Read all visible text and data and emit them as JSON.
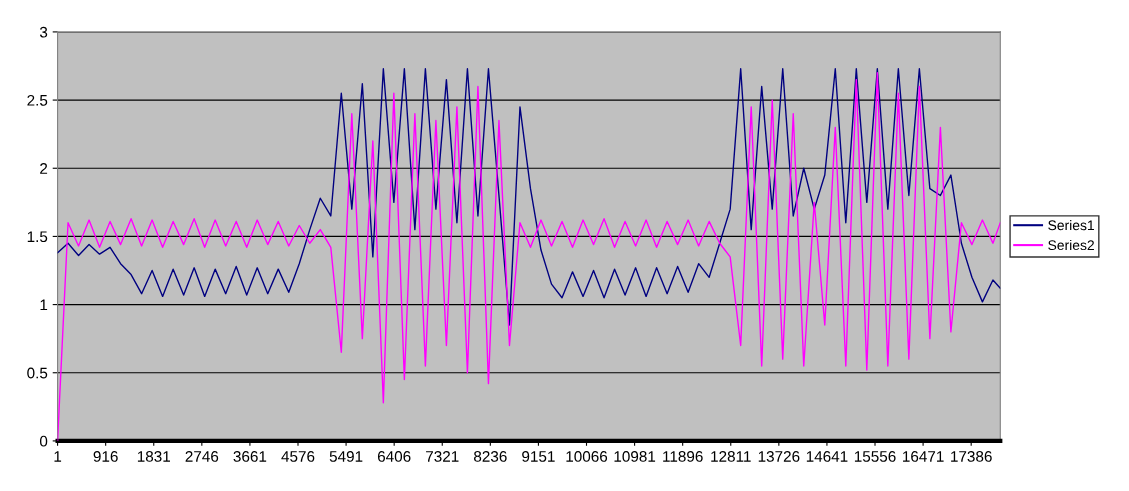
{
  "chart_data": {
    "type": "line",
    "x": [
      1,
      200,
      400,
      600,
      800,
      1000,
      1200,
      1400,
      1600,
      1800,
      2000,
      2200,
      2400,
      2600,
      2800,
      3000,
      3200,
      3400,
      3600,
      3800,
      4000,
      4200,
      4400,
      4600,
      4800,
      5000,
      5200,
      5400,
      5600,
      5800,
      6000,
      6200,
      6400,
      6600,
      6800,
      7000,
      7200,
      7400,
      7600,
      7800,
      8000,
      8200,
      8400,
      8600,
      8800,
      9000,
      9200,
      9400,
      9600,
      9800,
      10000,
      10200,
      10400,
      10600,
      10800,
      11000,
      11200,
      11400,
      11600,
      11800,
      12000,
      12200,
      12400,
      12600,
      12800,
      13000,
      13200,
      13400,
      13600,
      13800,
      14000,
      14200,
      14400,
      14600,
      14800,
      15000,
      15200,
      15400,
      15600,
      15800,
      16000,
      16200,
      16400,
      16600,
      16800,
      17000,
      17200,
      17400,
      17600,
      17800,
      17940
    ],
    "series": [
      {
        "name": "Series1",
        "color": "#000080",
        "values": [
          1.38,
          1.45,
          1.36,
          1.44,
          1.37,
          1.42,
          1.3,
          1.22,
          1.08,
          1.25,
          1.06,
          1.26,
          1.07,
          1.27,
          1.06,
          1.26,
          1.08,
          1.28,
          1.07,
          1.27,
          1.08,
          1.26,
          1.09,
          1.3,
          1.55,
          1.78,
          1.65,
          2.55,
          1.7,
          2.62,
          1.35,
          2.73,
          1.75,
          2.73,
          1.55,
          2.73,
          1.7,
          2.65,
          1.6,
          2.73,
          1.65,
          2.73,
          1.8,
          0.85,
          2.45,
          1.85,
          1.4,
          1.15,
          1.05,
          1.24,
          1.06,
          1.25,
          1.05,
          1.26,
          1.07,
          1.27,
          1.06,
          1.27,
          1.08,
          1.28,
          1.09,
          1.3,
          1.2,
          1.45,
          1.7,
          2.73,
          1.55,
          2.6,
          1.7,
          2.73,
          1.65,
          2.0,
          1.7,
          1.95,
          2.73,
          1.6,
          2.73,
          1.75,
          2.73,
          1.7,
          2.73,
          1.8,
          2.73,
          1.85,
          1.8,
          1.95,
          1.45,
          1.2,
          1.02,
          1.18,
          1.12
        ]
      },
      {
        "name": "Series2",
        "color": "#ff00ff",
        "values": [
          0.0,
          1.6,
          1.43,
          1.62,
          1.42,
          1.61,
          1.44,
          1.63,
          1.43,
          1.62,
          1.42,
          1.61,
          1.44,
          1.63,
          1.42,
          1.62,
          1.43,
          1.61,
          1.42,
          1.62,
          1.44,
          1.61,
          1.43,
          1.58,
          1.45,
          1.55,
          1.42,
          0.65,
          2.4,
          0.75,
          2.2,
          0.28,
          2.55,
          0.45,
          2.4,
          0.55,
          2.35,
          0.7,
          2.45,
          0.5,
          2.6,
          0.42,
          2.35,
          0.7,
          1.6,
          1.42,
          1.62,
          1.43,
          1.61,
          1.42,
          1.62,
          1.44,
          1.63,
          1.42,
          1.61,
          1.43,
          1.62,
          1.42,
          1.61,
          1.44,
          1.62,
          1.43,
          1.61,
          1.45,
          1.35,
          0.7,
          2.45,
          0.55,
          2.5,
          0.6,
          2.4,
          0.55,
          1.75,
          0.85,
          2.3,
          0.55,
          2.65,
          0.52,
          2.7,
          0.55,
          2.55,
          0.6,
          2.6,
          0.75,
          2.3,
          0.8,
          1.6,
          1.44,
          1.62,
          1.45,
          1.6
        ]
      }
    ],
    "xlim": [
      1,
      17940
    ],
    "xticks": [
      1,
      916,
      1831,
      2746,
      3661,
      4576,
      5491,
      6406,
      7321,
      8236,
      9151,
      10066,
      10981,
      11896,
      12811,
      13726,
      14641,
      15556,
      16471,
      17386
    ],
    "ylim": [
      0,
      3
    ],
    "yticks": [
      0,
      0.5,
      1,
      1.5,
      2,
      2.5,
      3
    ],
    "grid": "y",
    "legend": "right",
    "marker": "none",
    "line_style": "solid"
  }
}
